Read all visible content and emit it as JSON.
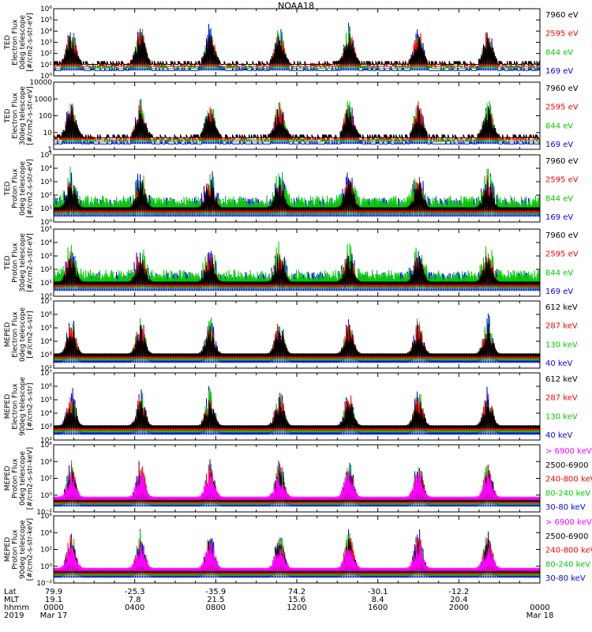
{
  "title": "NOAA18",
  "footer": {
    "row_labels": [
      "Lat",
      "MLT",
      "hhmm",
      "2019"
    ],
    "columns": [
      {
        "lat": "79.9",
        "mlt": "19.1",
        "hhmm": "0000",
        "date": "Mar 17"
      },
      {
        "lat": "-25.3",
        "mlt": "7.8",
        "hhmm": "0400",
        "date": ""
      },
      {
        "lat": "-35.9",
        "mlt": "21.5",
        "hhmm": "0800",
        "date": ""
      },
      {
        "lat": "74.2",
        "mlt": "15.6",
        "hhmm": "1200",
        "date": ""
      },
      {
        "lat": "-30.1",
        "mlt": "8.4",
        "hhmm": "1600",
        "date": ""
      },
      {
        "lat": "-12.2",
        "mlt": "20.4",
        "hhmm": "2000",
        "date": ""
      },
      {
        "lat": "",
        "mlt": "",
        "hhmm": "0000",
        "date": "Mar 18"
      }
    ]
  },
  "chart_data": [
    {
      "type": "line",
      "ylabel_lines": [
        "TED",
        "Electron Flux",
        "0deg telescope",
        "[#/cm2-s-str-eV]"
      ],
      "yscale": "log",
      "ylim": [
        1,
        1000000
      ],
      "yticks": [
        "10⁰",
        "10¹",
        "10²",
        "10³",
        "10⁴",
        "10⁵",
        "10⁶"
      ],
      "x_range_hours": [
        0,
        24
      ],
      "series": [
        {
          "name": "7960 eV",
          "color": "#000000"
        },
        {
          "name": "2595 eV",
          "color": "#ff0000"
        },
        {
          "name": "844 eV",
          "color": "#00cc00"
        },
        {
          "name": "169 eV",
          "color": "#0000ff"
        }
      ]
    },
    {
      "type": "line",
      "ylabel_lines": [
        "TED",
        "Electron Flux",
        "30deg telescope",
        "[#/cm2-s-str-eV]"
      ],
      "yscale": "log",
      "ylim": [
        1,
        10000
      ],
      "yticks": [
        "1",
        "10",
        "100",
        "1000",
        "10000"
      ],
      "x_range_hours": [
        0,
        24
      ],
      "series": [
        {
          "name": "7960 eV",
          "color": "#000000"
        },
        {
          "name": "2595 eV",
          "color": "#ff0000"
        },
        {
          "name": "844 eV",
          "color": "#00cc00"
        },
        {
          "name": "169 eV",
          "color": "#0000ff"
        }
      ]
    },
    {
      "type": "line",
      "ylabel_lines": [
        "TED",
        "Proton Flux",
        "0deg telescope",
        "[#/cm2-s-str-eV]"
      ],
      "yscale": "log",
      "ylim": [
        1,
        100000
      ],
      "yticks": [
        "10⁰",
        "10¹",
        "10²",
        "10³",
        "10⁴",
        "10⁵"
      ],
      "x_range_hours": [
        0,
        24
      ],
      "series": [
        {
          "name": "7960 eV",
          "color": "#000000"
        },
        {
          "name": "2595 eV",
          "color": "#ff0000"
        },
        {
          "name": "844 eV",
          "color": "#00cc00"
        },
        {
          "name": "169 eV",
          "color": "#0000ff"
        }
      ]
    },
    {
      "type": "line",
      "ylabel_lines": [
        "TED",
        "Proton Flux",
        "30deg telescope",
        "[#/cm2-s-str-eV]"
      ],
      "yscale": "log",
      "ylim": [
        1,
        100000
      ],
      "yticks": [
        "10⁰",
        "10¹",
        "10²",
        "10³",
        "10⁴",
        "10⁵"
      ],
      "x_range_hours": [
        0,
        24
      ],
      "series": [
        {
          "name": "7960 eV",
          "color": "#000000"
        },
        {
          "name": "2595 eV",
          "color": "#ff0000"
        },
        {
          "name": "844 eV",
          "color": "#00cc00"
        },
        {
          "name": "169 eV",
          "color": "#0000ff"
        }
      ]
    },
    {
      "type": "line",
      "ylabel_lines": [
        "MEPED",
        "Electron Flux",
        "0deg telescope",
        "[#/cm2-s-str]"
      ],
      "yscale": "log",
      "ylim": [
        100,
        10000000
      ],
      "yticks": [
        "10²",
        "10³",
        "10⁴",
        "10⁵",
        "10⁶",
        "10⁷"
      ],
      "x_range_hours": [
        0,
        24
      ],
      "series": [
        {
          "name": "612 keV",
          "color": "#000000"
        },
        {
          "name": "287 keV",
          "color": "#ff0000"
        },
        {
          "name": "130 keV",
          "color": "#00cc00"
        },
        {
          "name": "40 keV",
          "color": "#0000ff"
        }
      ]
    },
    {
      "type": "line",
      "ylabel_lines": [
        "MEPED",
        "Electron Flux",
        "90deg telescope",
        "[#/cm2-s-str]"
      ],
      "yscale": "log",
      "ylim": [
        100,
        10000000
      ],
      "yticks": [
        "10²",
        "10³",
        "10⁴",
        "10⁵",
        "10⁶",
        "10⁷"
      ],
      "x_range_hours": [
        0,
        24
      ],
      "series": [
        {
          "name": "612 keV",
          "color": "#000000"
        },
        {
          "name": "287 keV",
          "color": "#ff0000"
        },
        {
          "name": "130 keV",
          "color": "#00cc00"
        },
        {
          "name": "40 keV",
          "color": "#0000ff"
        }
      ]
    },
    {
      "type": "line",
      "ylabel_lines": [
        "MEPED",
        "Proton Flux",
        "0deg telescope",
        "[#/cm2-s-str-keV]"
      ],
      "yscale": "log",
      "ylim": [
        0.01,
        1000000
      ],
      "yticks": [
        "10⁻²",
        "10⁰",
        "10²",
        "10⁴",
        "10⁶"
      ],
      "x_range_hours": [
        0,
        24
      ],
      "series": [
        {
          "name": "> 6900 keV",
          "color": "#ff00ff"
        },
        {
          "name": "2500-6900",
          "color": "#000000"
        },
        {
          "name": "240-800 keV",
          "color": "#ff0000"
        },
        {
          "name": "80-240 keV",
          "color": "#00cc00"
        },
        {
          "name": "30-80 keV",
          "color": "#0000ff"
        }
      ]
    },
    {
      "type": "line",
      "ylabel_lines": [
        "MEPED",
        "Proton Flux",
        "90deg telescope",
        "[#/cm2-s-str-keV]"
      ],
      "yscale": "log",
      "ylim": [
        0.01,
        1000000
      ],
      "yticks": [
        "10⁻²",
        "10⁰",
        "10²",
        "10⁴",
        "10⁶"
      ],
      "x_range_hours": [
        0,
        24
      ],
      "series": [
        {
          "name": "> 6900 keV",
          "color": "#ff00ff"
        },
        {
          "name": "2500-6900",
          "color": "#000000"
        },
        {
          "name": "240-800 keV",
          "color": "#ff0000"
        },
        {
          "name": "80-240 keV",
          "color": "#00cc00"
        },
        {
          "name": "30-80 keV",
          "color": "#0000ff"
        }
      ]
    }
  ]
}
